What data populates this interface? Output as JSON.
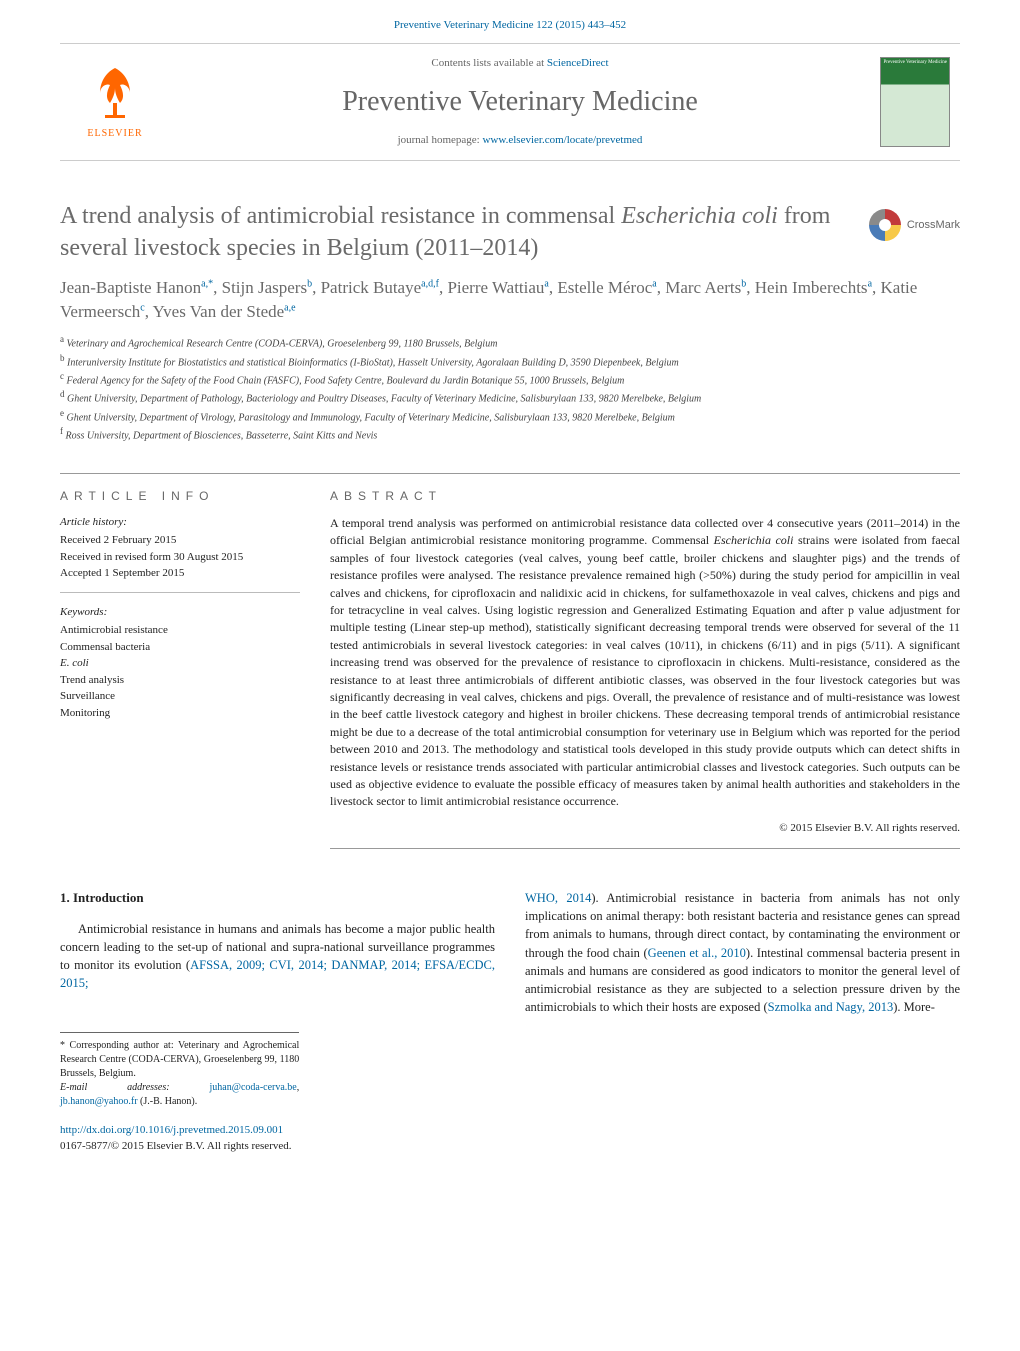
{
  "header": {
    "citation_link_text": "Preventive Veterinary Medicine 122 (2015) 443–452",
    "contents_text_prefix": "Contents lists available at ",
    "contents_link_text": "ScienceDirect",
    "journal_title": "Preventive Veterinary Medicine",
    "homepage_prefix": "journal homepage: ",
    "homepage_url": "www.elsevier.com/locate/prevetmed",
    "publisher_name": "ELSEVIER",
    "cover_title": "Preventive\nVeterinary\nMedicine"
  },
  "crossmark_label": "CrossMark",
  "article": {
    "title_part1": "A trend analysis of antimicrobial resistance in commensal ",
    "title_italic": "Escherichia coli",
    "title_part2": " from several livestock species in Belgium (2011–2014)",
    "authors_html": "Jean-Baptiste Hanon",
    "authors": [
      {
        "name": "Jean-Baptiste Hanon",
        "sup": "a,*"
      },
      {
        "name": "Stijn Jaspers",
        "sup": "b"
      },
      {
        "name": "Patrick Butaye",
        "sup": "a,d,f"
      },
      {
        "name": "Pierre Wattiau",
        "sup": "a"
      },
      {
        "name": "Estelle Méroc",
        "sup": "a"
      },
      {
        "name": "Marc Aerts",
        "sup": "b"
      },
      {
        "name": "Hein Imberechts",
        "sup": "a"
      },
      {
        "name": "Katie Vermeersch",
        "sup": "c"
      },
      {
        "name": "Yves Van der Stede",
        "sup": "a,e"
      }
    ],
    "affiliations": [
      {
        "sup": "a",
        "text": "Veterinary and Agrochemical Research Centre (CODA-CERVA), Groeselenberg 99, 1180 Brussels, Belgium"
      },
      {
        "sup": "b",
        "text": "Interuniversity Institute for Biostatistics and statistical Bioinformatics (I-BioStat), Hasselt University, Agoralaan Building D, 3590 Diepenbeek, Belgium"
      },
      {
        "sup": "c",
        "text": "Federal Agency for the Safety of the Food Chain (FASFC), Food Safety Centre, Boulevard du Jardin Botanique 55, 1000 Brussels, Belgium"
      },
      {
        "sup": "d",
        "text": "Ghent University, Department of Pathology, Bacteriology and Poultry Diseases, Faculty of Veterinary Medicine, Salisburylaan 133, 9820 Merelbeke, Belgium"
      },
      {
        "sup": "e",
        "text": "Ghent University, Department of Virology, Parasitology and Immunology, Faculty of Veterinary Medicine, Salisburylaan 133, 9820 Merelbeke, Belgium"
      },
      {
        "sup": "f",
        "text": "Ross University, Department of Biosciences, Basseterre, Saint Kitts and Nevis"
      }
    ]
  },
  "info": {
    "heading": "article info",
    "history_label": "Article history:",
    "history_lines": [
      "Received 2 February 2015",
      "Received in revised form 30 August 2015",
      "Accepted 1 September 2015"
    ],
    "keywords_label": "Keywords:",
    "keywords": [
      "Antimicrobial resistance",
      "Commensal bacteria",
      "E. coli",
      "Trend analysis",
      "Surveillance",
      "Monitoring"
    ]
  },
  "abstract": {
    "heading": "abstract",
    "text_pre": "A temporal trend analysis was performed on antimicrobial resistance data collected over 4 consecutive years (2011–2014) in the official Belgian antimicrobial resistance monitoring programme. Commensal ",
    "text_italic": "Escherichia coli",
    "text_post": " strains were isolated from faecal samples of four livestock categories (veal calves, young beef cattle, broiler chickens and slaughter pigs) and the trends of resistance profiles were analysed. The resistance prevalence remained high (>50%) during the study period for ampicillin in veal calves and chickens, for ciprofloxacin and nalidixic acid in chickens, for sulfamethoxazole in veal calves, chickens and pigs and for tetracycline in veal calves. Using logistic regression and Generalized Estimating Equation and after p value adjustment for multiple testing (Linear step-up method), statistically significant decreasing temporal trends were observed for several of the 11 tested antimicrobials in several livestock categories: in veal calves (10/11), in chickens (6/11) and in pigs (5/11). A significant increasing trend was observed for the prevalence of resistance to ciprofloxacin in chickens. Multi-resistance, considered as the resistance to at least three antimicrobials of different antibiotic classes, was observed in the four livestock categories but was significantly decreasing in veal calves, chickens and pigs. Overall, the prevalence of resistance and of multi-resistance was lowest in the beef cattle livestock category and highest in broiler chickens. These decreasing temporal trends of antimicrobial resistance might be due to a decrease of the total antimicrobial consumption for veterinary use in Belgium which was reported for the period between 2010 and 2013. The methodology and statistical tools developed in this study provide outputs which can detect shifts in resistance levels or resistance trends associated with particular antimicrobial classes and livestock categories. Such outputs can be used as objective evidence to evaluate the possible efficacy of measures taken by animal health authorities and stakeholders in the livestock sector to limit antimicrobial resistance occurrence.",
    "copyright": "© 2015 Elsevier B.V. All rights reserved."
  },
  "body": {
    "intro_heading": "1.  Introduction",
    "left_para_pre": "Antimicrobial resistance in humans and animals has become a major public health concern leading to the set-up of national and supra-national surveillance programmes to monitor its evolution (",
    "left_para_link": "AFSSA, 2009; CVI, 2014; DANMAP, 2014; EFSA/ECDC, 2015;",
    "right_para_link": "WHO, 2014",
    "right_para_mid1": "). Antimicrobial resistance in bacteria from animals has not only implications on animal therapy: both resistant bacteria and resistance genes can spread from animals to humans, through direct contact, by contaminating the environment or through the food chain (",
    "right_para_link2": "Geenen et al., 2010",
    "right_para_mid2": "). Intestinal commensal bacteria present in animals and humans are considered as good indicators to monitor the general level of antimicrobial resistance as they are subjected to a selection pressure driven by the antimicrobials to which their hosts are exposed (",
    "right_para_link3": "Szmolka and Nagy, 2013",
    "right_para_post": "). More-"
  },
  "footnotes": {
    "corr_label": "* Corresponding author at: Veterinary and Agrochemical Research Centre (CODA-CERVA), Groeselenberg 99, 1180 Brussels, Belgium.",
    "email_label": "E-mail addresses: ",
    "email1": "juhan@coda-cerva.be",
    "email_sep": ", ",
    "email2": "jb.hanon@yahoo.fr",
    "email_post": " (J.-B. Hanon)."
  },
  "footer": {
    "doi_url": "http://dx.doi.org/10.1016/j.prevetmed.2015.09.001",
    "issn_line": "0167-5877/© 2015 Elsevier B.V. All rights reserved."
  },
  "colors": {
    "link": "#0066a1",
    "title_grey": "#6a6a6a",
    "elsevier_orange": "#ff6600",
    "cover_green": "#2a7a3a"
  }
}
